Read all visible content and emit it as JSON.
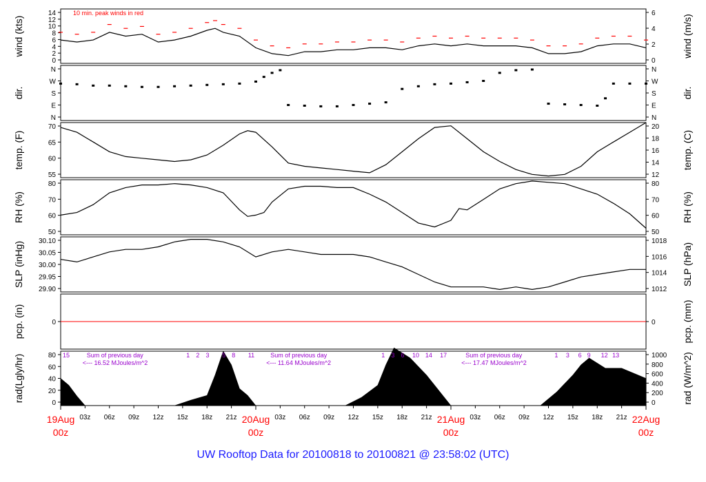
{
  "colors": {
    "data": "#000000",
    "peak_winds": "#ff0000",
    "zero_line": "#ff0000",
    "annotation": "#9900cc",
    "date_labels": "#ff0000",
    "footer": "#1a1aff"
  },
  "footer": {
    "text": "UW Rooftop Data for 20100818  to  20100821 @ 23:58:02  (UTC)"
  },
  "chart_data": {
    "type": "line",
    "x_range_hours": [
      0,
      72
    ],
    "x_axis": {
      "hour_ticks": [
        "03z",
        "06z",
        "09z",
        "12z",
        "15z",
        "18z",
        "21z",
        "03z",
        "06z",
        "09z",
        "12z",
        "15z",
        "18z",
        "21z",
        "03z",
        "06z",
        "09z",
        "12z",
        "15z",
        "18z",
        "21z"
      ],
      "date_labels": [
        {
          "date": "19Aug",
          "time": "00z"
        },
        {
          "date": "20Aug",
          "time": "00z"
        },
        {
          "date": "21Aug",
          "time": "00z"
        },
        {
          "date": "22Aug",
          "time": "00z"
        }
      ]
    },
    "panels": [
      {
        "id": "wind",
        "left_label": "wind (kts)",
        "right_label": "wind (m/s)",
        "left_range": [
          0,
          14
        ],
        "left_ticks": [
          "0",
          "2",
          "4",
          "6",
          "8",
          "10",
          "12",
          "14"
        ],
        "right_ticks": [
          "0",
          "2",
          "4",
          "6"
        ],
        "annotation": "10 min. peak winds in red",
        "series": [
          {
            "x": [
              0,
              2,
              4,
              6,
              8,
              10,
              12,
              14,
              16,
              18,
              19,
              20,
              22,
              24,
              26,
              28,
              30,
              32,
              34,
              36,
              38,
              40,
              42,
              44,
              46,
              48,
              50,
              52,
              54,
              56,
              58,
              60,
              62,
              64,
              66,
              68,
              70,
              72
            ],
            "y": [
              6,
              5.5,
              6,
              8,
              7,
              7.5,
              5.5,
              6,
              7,
              8.5,
              9,
              8,
              7,
              4,
              2.5,
              2,
              3,
              3,
              3.5,
              3.5,
              4,
              4,
              3.5,
              4.5,
              5,
              4.5,
              5,
              4.5,
              4.5,
              4.5,
              4,
              2.5,
              2.5,
              3,
              4.5,
              5,
              5,
              4
            ]
          }
        ]
      },
      {
        "id": "dir",
        "left_label": "dir.",
        "right_label": "dir.",
        "left_ticks": [
          "N",
          "E",
          "S",
          "W",
          "N"
        ],
        "right_ticks": [
          "N",
          "E",
          "S",
          "W",
          "N"
        ],
        "series": [
          {
            "x": [
              0,
              2,
              4,
              6,
              8,
              10,
              12,
              14,
              16,
              18,
              20,
              22,
              24,
              25,
              26,
              27,
              28,
              30,
              32,
              34,
              36,
              38,
              40,
              42,
              44,
              46,
              48,
              50,
              52,
              54,
              56,
              58,
              60,
              62,
              64,
              66,
              67,
              68,
              70,
              72
            ],
            "y": [
              250,
              245,
              235,
              235,
              230,
              225,
              225,
              230,
              235,
              240,
              245,
              250,
              265,
              300,
              330,
              350,
              90,
              85,
              80,
              80,
              90,
              100,
              110,
              210,
              230,
              245,
              250,
              260,
              270,
              330,
              350,
              355,
              100,
              95,
              90,
              85,
              140,
              250,
              250,
              250
            ]
          }
        ]
      },
      {
        "id": "temp",
        "left_label": "temp. (F)",
        "right_label": "temp. (C)",
        "left_range": [
          53,
          70
        ],
        "left_ticks": [
          "55",
          "60",
          "65",
          "70"
        ],
        "right_ticks": [
          "12",
          "14",
          "16",
          "18",
          "20"
        ],
        "series": [
          {
            "x": [
              0,
              2,
              4,
              6,
              8,
              10,
              12,
              14,
              16,
              18,
              20,
              22,
              23,
              24,
              26,
              28,
              30,
              32,
              34,
              36,
              38,
              40,
              42,
              44,
              46,
              48,
              50,
              52,
              54,
              56,
              58,
              60,
              62,
              64,
              66,
              68,
              70,
              72
            ],
            "y": [
              68.5,
              67,
              64,
              61,
              59.5,
              59,
              58.5,
              58,
              58.5,
              60,
              63,
              66.5,
              67.5,
              67,
              62.5,
              57.5,
              56.5,
              56,
              55.5,
              55,
              54.5,
              57,
              61,
              65,
              68.5,
              69,
              65,
              61,
              58,
              55.5,
              54,
              53.5,
              54,
              56.5,
              61,
              64,
              67,
              70
            ]
          }
        ]
      },
      {
        "id": "rh",
        "left_label": "RH (%)",
        "right_label": "RH (%)",
        "left_range": [
          45,
          87
        ],
        "left_ticks": [
          "50",
          "60",
          "70",
          "80"
        ],
        "right_ticks": [
          "50",
          "60",
          "70",
          "80"
        ],
        "series": [
          {
            "x": [
              0,
              2,
              4,
              6,
              8,
              10,
              12,
              14,
              16,
              18,
              20,
              22,
              23,
              24,
              25,
              26,
              28,
              30,
              32,
              34,
              36,
              38,
              40,
              42,
              44,
              46,
              48,
              49,
              50,
              52,
              54,
              56,
              58,
              60,
              62,
              64,
              66,
              68,
              70,
              72
            ],
            "y": [
              60,
              62,
              68,
              77,
              81,
              83,
              83,
              84,
              83,
              81,
              77,
              64,
              59,
              60,
              62,
              70,
              80,
              82,
              82,
              81,
              81,
              76,
              70,
              62,
              54,
              51,
              56,
              65,
              64,
              72,
              80,
              84,
              86,
              85,
              84,
              80,
              76,
              69,
              61,
              50
            ]
          }
        ]
      },
      {
        "id": "slp",
        "left_label": "SLP (inHg)",
        "right_label": "SLP (hPa)",
        "left_range": [
          29.88,
          30.1
        ],
        "left_ticks": [
          "29.90",
          "29.95",
          "30.00",
          "30.05",
          "30.10"
        ],
        "right_ticks": [
          "1012",
          "1014",
          "1016",
          "1018"
        ],
        "series": [
          {
            "x": [
              0,
              2,
              4,
              6,
              8,
              10,
              12,
              14,
              16,
              18,
              20,
              22,
              24,
              26,
              28,
              30,
              32,
              34,
              36,
              38,
              40,
              42,
              44,
              46,
              48,
              50,
              52,
              54,
              56,
              58,
              60,
              62,
              64,
              66,
              68,
              70,
              72
            ],
            "y": [
              30.01,
              30.0,
              30.02,
              30.04,
              30.05,
              30.05,
              30.06,
              30.08,
              30.09,
              30.09,
              30.08,
              30.06,
              30.02,
              30.04,
              30.05,
              30.04,
              30.03,
              30.03,
              30.03,
              30.02,
              30.0,
              29.98,
              29.95,
              29.92,
              29.9,
              29.9,
              29.9,
              29.89,
              29.9,
              29.89,
              29.9,
              29.92,
              29.94,
              29.95,
              29.96,
              29.97,
              29.97
            ]
          }
        ]
      },
      {
        "id": "pcp",
        "left_label": "pcp. (in)",
        "right_label": "pcp. (mm)",
        "left_ticks": [
          "0"
        ],
        "right_ticks": [
          "0"
        ],
        "series": [
          {
            "x": [
              0,
              72
            ],
            "y": [
              0,
              0
            ]
          }
        ]
      },
      {
        "id": "rad",
        "left_label": "rad(Lgly/hr)",
        "right_label": "rad (W/m^2)",
        "left_range": [
          0,
          80
        ],
        "left_ticks": [
          "0",
          "20",
          "40",
          "60",
          "80"
        ],
        "right_ticks": [
          "0",
          "200",
          "400",
          "600",
          "800",
          "1000"
        ],
        "hour_markers": [
          {
            "x": 0,
            "label": "15"
          },
          {
            "x": 15.2,
            "label": "1"
          },
          {
            "x": 16.4,
            "label": "2"
          },
          {
            "x": 17.6,
            "label": "3"
          },
          {
            "x": 19.6,
            "label": "5"
          },
          {
            "x": 20.8,
            "label": "8"
          },
          {
            "x": 22.8,
            "label": "11"
          },
          {
            "x": 39.2,
            "label": "1"
          },
          {
            "x": 40.4,
            "label": "3"
          },
          {
            "x": 41.6,
            "label": "6"
          },
          {
            "x": 43.0,
            "label": "10"
          },
          {
            "x": 44.6,
            "label": "14"
          },
          {
            "x": 46.4,
            "label": "17"
          },
          {
            "x": 60.5,
            "label": "1"
          },
          {
            "x": 61.9,
            "label": "3"
          },
          {
            "x": 63.4,
            "label": "6"
          },
          {
            "x": 64.5,
            "label": "9"
          },
          {
            "x": 66.2,
            "label": "12"
          },
          {
            "x": 67.6,
            "label": "13"
          }
        ],
        "daily_sums": [
          {
            "x": 3.2,
            "line1": "Sum of previous day",
            "line2": "<--- 16.52 MJoules/m^2"
          },
          {
            "x": 25.8,
            "line1": "Sum of previous day",
            "line2": "<--- 11.64 MJoules/m^2"
          },
          {
            "x": 49.8,
            "line1": "Sum of previous day",
            "line2": "<--- 17.47 MJoules/m^2"
          }
        ],
        "series": [
          {
            "x": [
              0,
              1,
              2,
              3,
              14,
              16,
              18,
              19,
              20,
              21,
              22,
              23,
              24,
              35,
              37,
              39,
              40,
              41,
              43,
              45,
              47,
              48,
              59,
              61,
              63,
              64,
              65,
              67,
              69,
              72
            ],
            "y": [
              40,
              30,
              14,
              0,
              0,
              8,
              15,
              45,
              80,
              60,
              25,
              15,
              0,
              0,
              12,
              30,
              60,
              85,
              70,
              45,
              15,
              0,
              0,
              20,
              45,
              60,
              70,
              55,
              55,
              40
            ]
          }
        ]
      }
    ]
  }
}
